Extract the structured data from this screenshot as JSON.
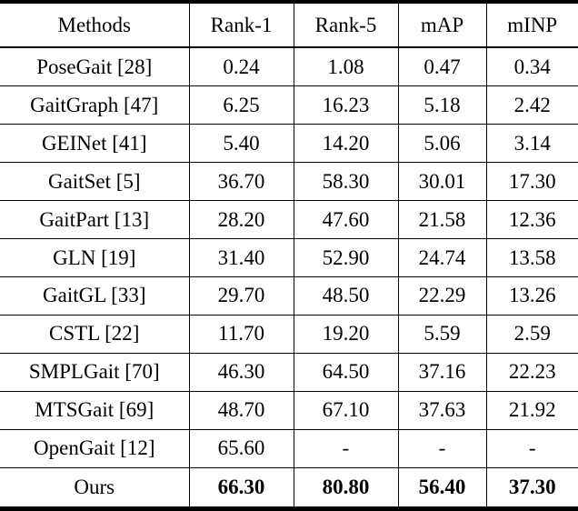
{
  "table": {
    "columns": [
      "Methods",
      "Rank-1",
      "Rank-5",
      "mAP",
      "mINP"
    ],
    "rows": [
      {
        "method": "PoseGait [28]",
        "rank1": "0.24",
        "rank5": "1.08",
        "map": "0.47",
        "minp": "0.34"
      },
      {
        "method": "GaitGraph [47]",
        "rank1": "6.25",
        "rank5": "16.23",
        "map": "5.18",
        "minp": "2.42"
      },
      {
        "method": "GEINet [41]",
        "rank1": "5.40",
        "rank5": "14.20",
        "map": "5.06",
        "minp": "3.14"
      },
      {
        "method": "GaitSet [5]",
        "rank1": "36.70",
        "rank5": "58.30",
        "map": "30.01",
        "minp": "17.30"
      },
      {
        "method": "GaitPart [13]",
        "rank1": "28.20",
        "rank5": "47.60",
        "map": "21.58",
        "minp": "12.36"
      },
      {
        "method": "GLN [19]",
        "rank1": "31.40",
        "rank5": "52.90",
        "map": "24.74",
        "minp": "13.58"
      },
      {
        "method": "GaitGL [33]",
        "rank1": "29.70",
        "rank5": "48.50",
        "map": "22.29",
        "minp": "13.26"
      },
      {
        "method": "CSTL [22]",
        "rank1": "11.70",
        "rank5": "19.20",
        "map": "5.59",
        "minp": "2.59"
      },
      {
        "method": "SMPLGait [70]",
        "rank1": "46.30",
        "rank5": "64.50",
        "map": "37.16",
        "minp": "22.23"
      },
      {
        "method": "MTSGait [69]",
        "rank1": "48.70",
        "rank5": "67.10",
        "map": "37.63",
        "minp": "21.92"
      },
      {
        "method": "OpenGait [12]",
        "rank1": "65.60",
        "rank5": "-",
        "map": "-",
        "minp": "-"
      },
      {
        "method": "Ours",
        "rank1": "66.30",
        "rank5": "80.80",
        "map": "56.40",
        "minp": "37.30"
      }
    ]
  },
  "colors": {
    "text": "#000000",
    "border": "#000000",
    "background": "#ffffff"
  }
}
